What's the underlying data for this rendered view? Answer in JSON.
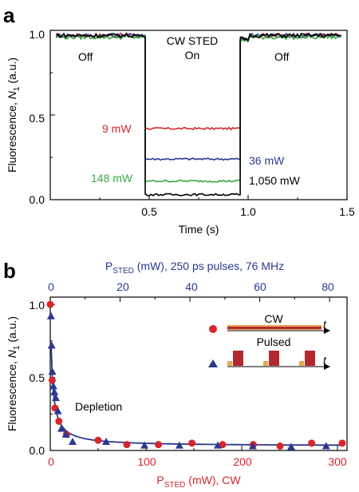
{
  "chart_data": [
    {
      "panel": "a",
      "type": "line",
      "xlabel": "Time (s)",
      "ylabel_prefix": "Fluorescence, ",
      "ylabel_var": "N",
      "ylabel_sub": "1",
      "ylabel_suffix": " (a.u.)",
      "xlim": [
        0,
        1.5
      ],
      "ylim": [
        0,
        1.0
      ],
      "xticks": [
        "0.5",
        "1.0",
        "1.5"
      ],
      "yticks": [
        "0.0",
        "0.5",
        "1.0"
      ],
      "annotations": {
        "off_left": "Off",
        "off_right": "Off",
        "on_line1": "CW STED",
        "on_line2": "On"
      },
      "colors": {
        "9 mW": "#d7262d",
        "36 mW": "#2b3990",
        "148 mW": "#3aa843",
        "1,050 mW": "#000000"
      },
      "series": [
        {
          "name": "9 mW",
          "off_level": 0.97,
          "on_level": 0.42
        },
        {
          "name": "36 mW",
          "off_level": 0.97,
          "on_level": 0.24
        },
        {
          "name": "148 mW",
          "off_level": 0.96,
          "on_level": 0.11
        },
        {
          "name": "1,050 mW",
          "off_level": 0.97,
          "on_level": 0.03
        }
      ],
      "switch_on_time": 0.48,
      "switch_off_time": 0.96
    },
    {
      "panel": "b",
      "type": "scatter",
      "xlabel_prefix": "P",
      "xlabel_sub": "STED",
      "xlabel_suffix": " (mW), CW",
      "x2label_prefix": "P",
      "x2label_sub": "STED",
      "x2label_suffix": " (mW), 250 ps pulses, 76 MHz",
      "ylabel_prefix": "Fluorescence, ",
      "ylabel_var": "N",
      "ylabel_sub": "1",
      "ylabel_suffix": " (a.u.)",
      "xlim": [
        0,
        310
      ],
      "x2lim": [
        0,
        85
      ],
      "ylim": [
        0,
        1.05
      ],
      "xticks": [
        "0",
        "100",
        "200",
        "300"
      ],
      "x2ticks": [
        "0",
        "20",
        "40",
        "60",
        "80"
      ],
      "yticks": [
        "0.0",
        "0.5",
        "1.0"
      ],
      "annotation": "Depletion",
      "inset": {
        "cw_label": "CW",
        "pulsed_label": "Pulsed",
        "time_symbol": "t"
      },
      "series": [
        {
          "name": "CW",
          "marker": "circle",
          "color": "#d7262d",
          "x": [
            0,
            2,
            5,
            9,
            17,
            50,
            80,
            113,
            148,
            180,
            212,
            240,
            273,
            305
          ],
          "y": [
            1.0,
            0.48,
            0.29,
            0.2,
            0.11,
            0.07,
            0.04,
            0.04,
            0.05,
            0.04,
            0.04,
            0.03,
            0.05,
            0.05
          ]
        },
        {
          "name": "Pulsed",
          "marker": "triangle",
          "color": "#2b3990",
          "x": [
            0.2,
            0.4,
            0.6,
            0.9,
            1.2,
            1.6,
            2.2,
            3.2,
            4.5,
            6.4,
            16,
            27,
            37,
            48,
            58,
            69,
            79
          ],
          "y": [
            0.92,
            0.72,
            0.54,
            0.44,
            0.4,
            0.36,
            0.27,
            0.15,
            0.11,
            0.06,
            0.06,
            0.035,
            0.035,
            0.035,
            0.03,
            0.025,
            0.03
          ]
        }
      ],
      "fit_curve_color": "#2b3990"
    }
  ]
}
